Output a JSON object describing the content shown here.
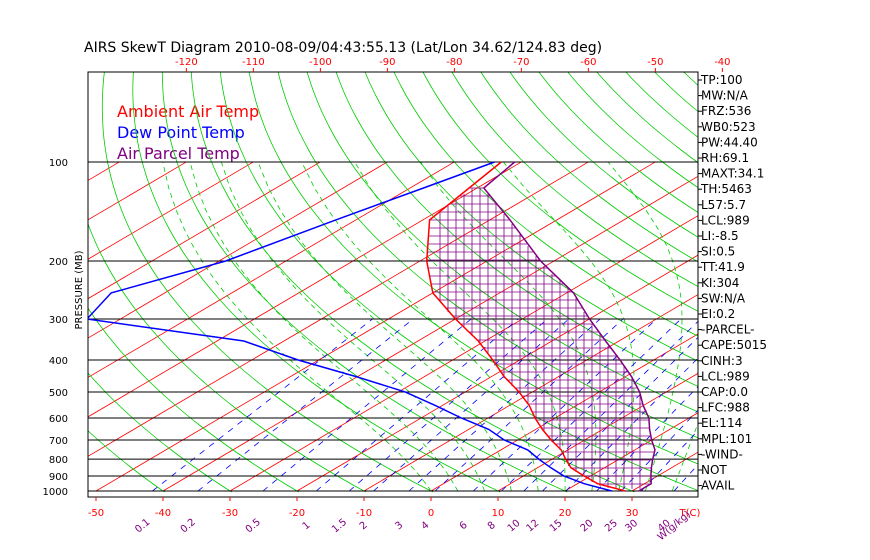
{
  "chart_data": {
    "type": "skewt",
    "title": "AIRS SkewT Diagram 2010-08-09/04:43:55.13 (Lat/Lon 34.62/124.83 deg)",
    "ylabel": "PRESSURE (MB)",
    "xlabel_temp": "T(C)",
    "xlabel_mix": "W(g/kg)",
    "pressure_levels": [
      100,
      200,
      300,
      400,
      500,
      600,
      700,
      800,
      900,
      1000
    ],
    "pressure_labels": [
      "100",
      "200",
      "300",
      "400",
      "500",
      "600",
      "700",
      "800",
      "900",
      "1000"
    ],
    "top_temps": [
      -120,
      -110,
      -100,
      -90,
      -80,
      -70,
      -60,
      -50,
      -40
    ],
    "top_temp_labels": [
      "-120",
      "-110",
      "-100",
      "-90",
      "-80",
      "-70",
      "-60",
      "-50",
      "-40"
    ],
    "bottom_temps": [
      -50,
      -40,
      -30,
      -20,
      -10,
      0,
      10,
      20,
      30
    ],
    "bottom_temp_labels": [
      "-50",
      "-40",
      "-30",
      "-20",
      "-10",
      "0",
      "10",
      "20",
      "30"
    ],
    "mixing_ratios": [
      0.1,
      0.2,
      0.5,
      1,
      1.5,
      2,
      3,
      4,
      6,
      8,
      10,
      12,
      15,
      20,
      25,
      30,
      40
    ],
    "mixing_ratio_labels": [
      "0.1",
      "0.2",
      "0.5",
      "1",
      "1.5",
      "2",
      "3",
      "4",
      "6",
      "8",
      "10",
      "12",
      "15",
      "20",
      "25",
      "30",
      "40"
    ],
    "legend": [
      {
        "label": "Ambient Air Temp",
        "color": "#ff0000"
      },
      {
        "label": "Dew Point Temp",
        "color": "#0000ff"
      },
      {
        "label": "Air Parcel Temp",
        "color": "#800080"
      }
    ],
    "series": [
      {
        "name": "Ambient Air Temp",
        "color": "#ff0000",
        "points": [
          [
            100,
            -73
          ],
          [
            150,
            -69
          ],
          [
            200,
            -59
          ],
          [
            250,
            -50
          ],
          [
            300,
            -40
          ],
          [
            350,
            -31
          ],
          [
            400,
            -24
          ],
          [
            450,
            -18
          ],
          [
            500,
            -12
          ],
          [
            550,
            -7
          ],
          [
            600,
            -3
          ],
          [
            650,
            1
          ],
          [
            700,
            5
          ],
          [
            750,
            9
          ],
          [
            800,
            12
          ],
          [
            850,
            15
          ],
          [
            900,
            19
          ],
          [
            950,
            23
          ],
          [
            1000,
            29
          ]
        ]
      },
      {
        "name": "Dew Point Temp",
        "color": "#0000ff",
        "points": [
          [
            100,
            -74
          ],
          [
            120,
            -78
          ],
          [
            150,
            -83
          ],
          [
            200,
            -89
          ],
          [
            250,
            -98
          ],
          [
            300,
            -95
          ],
          [
            350,
            -66
          ],
          [
            400,
            -53
          ],
          [
            450,
            -40
          ],
          [
            500,
            -29
          ],
          [
            550,
            -21
          ],
          [
            600,
            -14
          ],
          [
            650,
            -7
          ],
          [
            700,
            -2
          ],
          [
            750,
            4
          ],
          [
            800,
            8
          ],
          [
            850,
            12
          ],
          [
            900,
            16
          ],
          [
            950,
            21
          ],
          [
            1000,
            27
          ]
        ]
      },
      {
        "name": "Air Parcel Temp",
        "color": "#800080",
        "points": [
          [
            100,
            -71
          ],
          [
            120,
            -69
          ],
          [
            150,
            -57
          ],
          [
            200,
            -42
          ],
          [
            250,
            -29
          ],
          [
            300,
            -20
          ],
          [
            350,
            -12
          ],
          [
            400,
            -5
          ],
          [
            450,
            1
          ],
          [
            500,
            6
          ],
          [
            550,
            10
          ],
          [
            600,
            14
          ],
          [
            650,
            17
          ],
          [
            700,
            20
          ],
          [
            750,
            23
          ],
          [
            800,
            25
          ],
          [
            850,
            27
          ],
          [
            900,
            29
          ],
          [
            950,
            31
          ],
          [
            1000,
            31
          ]
        ]
      }
    ],
    "indices": [
      "TP:100",
      "MW:N/A",
      "FRZ:536",
      "WB0:523",
      "PW:44.40",
      "RH:69.1",
      "MAXT:34.1",
      "TH:5463",
      "L57:5.7",
      "LCL:989",
      "LI:-8.5",
      "SI:0.5",
      "TT:41.9",
      "KI:304",
      "SW:N/A",
      "EI:0.2",
      "-PARCEL-",
      "CAPE:5015",
      "CINH:3",
      "LCL:989",
      "CAP:0.0",
      "LFC:988",
      "EL:114",
      "MPL:101",
      "-WIND-",
      "NOT",
      "AVAIL"
    ],
    "colors": {
      "isotherm": "#ff0000",
      "dry_adiabat": "#00cc00",
      "moist_adiabat": "#00cc00",
      "mixing_ratio": "#0000ff",
      "hatch": "#800080",
      "top_axis": "#ff0000",
      "bottom_axis": "#ff0000",
      "mix_axis": "#800080"
    }
  }
}
